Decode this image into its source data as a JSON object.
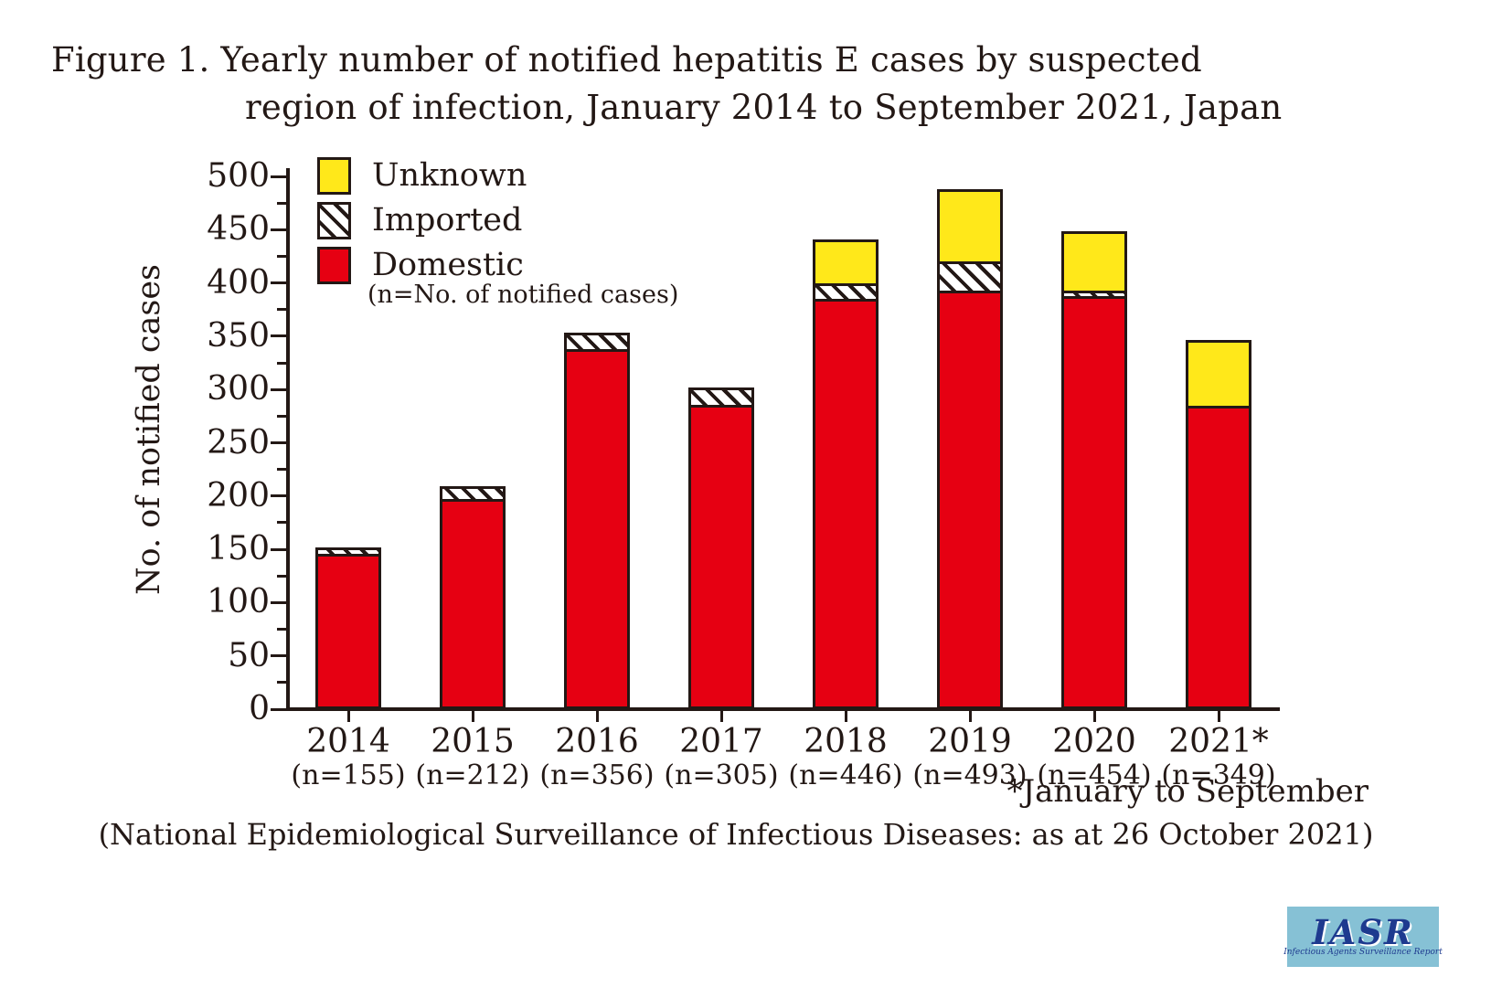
{
  "figure": {
    "title_line1": "Figure 1. Yearly number of notified hepatitis E cases by suspected",
    "title_line2": "region of infection, January 2014 to September 2021, Japan",
    "footnote_asterisk": "*January to September",
    "source_note": "(National Epidemiological Surveillance of Infectious Diseases: as at 26 October 2021)"
  },
  "chart_data": {
    "type": "bar",
    "stacked": true,
    "title": "Figure 1. Yearly number of notified hepatitis E cases by suspected region of infection, January 2014 to September 2021, Japan",
    "xlabel": "",
    "ylabel": "No. of notified cases",
    "ylim": [
      0,
      500
    ],
    "ytick_step": 50,
    "yminor_step": 25,
    "grid": false,
    "legend_position": "top-left-inside",
    "categories": [
      "2014",
      "2015",
      "2016",
      "2017",
      "2018",
      "2019",
      "2020",
      "2021*"
    ],
    "n_labels": [
      "(n=155)",
      "(n=212)",
      "(n=356)",
      "(n=305)",
      "(n=446)",
      "(n=493)",
      "(n=454)",
      "(n=349)"
    ],
    "totals": [
      155,
      212,
      356,
      305,
      446,
      493,
      454,
      349
    ],
    "series": [
      {
        "name": "Domestic",
        "pattern": "solid-domestic",
        "color": "#e60012",
        "values": [
          146,
          197,
          338,
          286,
          385,
          393,
          388,
          285
        ]
      },
      {
        "name": "Imported",
        "pattern": "hatch",
        "color": "diagonal-black-on-white",
        "values": [
          9,
          15,
          18,
          19,
          17,
          30,
          8,
          0
        ]
      },
      {
        "name": "Unknown",
        "pattern": "solid-unknown",
        "color": "#ffe81a",
        "values": [
          0,
          0,
          0,
          0,
          44,
          70,
          58,
          64
        ]
      }
    ],
    "year_2021_note": "*January to September"
  },
  "legend": {
    "items": [
      {
        "label": "Unknown",
        "swatch": "yellow"
      },
      {
        "label": "Imported",
        "swatch": "hatch"
      },
      {
        "label": "Domestic",
        "swatch": "red"
      }
    ],
    "note": "(n=No. of notified cases)"
  },
  "colors": {
    "ink": "#231815",
    "domestic_red": "#e60012",
    "unknown_yellow": "#ffe81a",
    "background": "#ffffff",
    "logo_background": "#86c1d5",
    "logo_navy": "#1e3a8f"
  },
  "logo": {
    "title": "IASR",
    "subtitle": "Infectious Agents Surveillance Report"
  }
}
